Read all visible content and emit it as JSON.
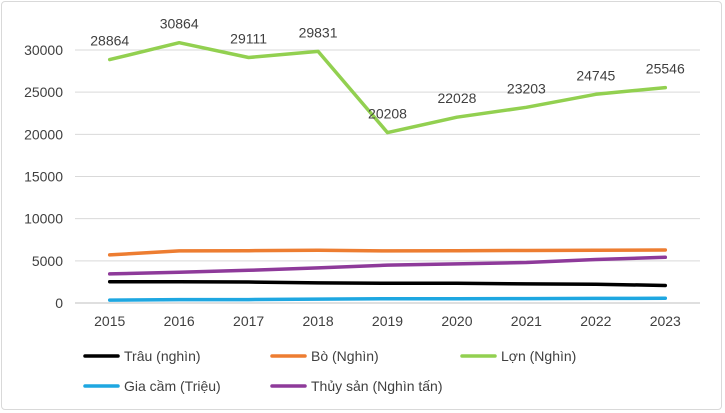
{
  "chart_data": {
    "type": "line",
    "title": "",
    "xlabel": "",
    "ylabel": "",
    "x": [
      "2015",
      "2016",
      "2017",
      "2018",
      "2019",
      "2020",
      "2021",
      "2022",
      "2023"
    ],
    "ylim": [
      0,
      30000
    ],
    "yticks": [
      0,
      5000,
      10000,
      15000,
      20000,
      25000,
      30000
    ],
    "grid": true,
    "legend_position": "bottom",
    "series": [
      {
        "name": "Trâu (nghìn)",
        "color": "#000000",
        "values": [
          2524,
          2519,
          2485,
          2388,
          2333,
          2332,
          2270,
          2231,
          2072
        ],
        "show_labels": false
      },
      {
        "name": "Bò (Nghìn)",
        "color": "#ed7d31",
        "values": [
          5700,
          6180,
          6200,
          6250,
          6180,
          6200,
          6230,
          6260,
          6280
        ],
        "show_labels": false
      },
      {
        "name": "Lợn (Nghìn)",
        "color": "#92d050",
        "values": [
          28864,
          30864,
          29111,
          29831,
          20208,
          22028,
          23203,
          24745,
          25546
        ],
        "show_labels": true,
        "labels": [
          "28864",
          "30864",
          "29111",
          "29831",
          "20208",
          "22028",
          "23203",
          "24745",
          "25546"
        ]
      },
      {
        "name": "Gia cầm (Triệu)",
        "color": "#1ea7e1",
        "values": [
          342,
          402,
          409,
          468,
          512,
          513,
          524,
          550,
          560
        ],
        "show_labels": false
      },
      {
        "name": "Thủy sản (Nghìn tấn)",
        "color": "#8e3a9a",
        "values": [
          3450,
          3640,
          3880,
          4160,
          4490,
          4640,
          4800,
          5160,
          5420
        ],
        "show_labels": false
      }
    ]
  }
}
